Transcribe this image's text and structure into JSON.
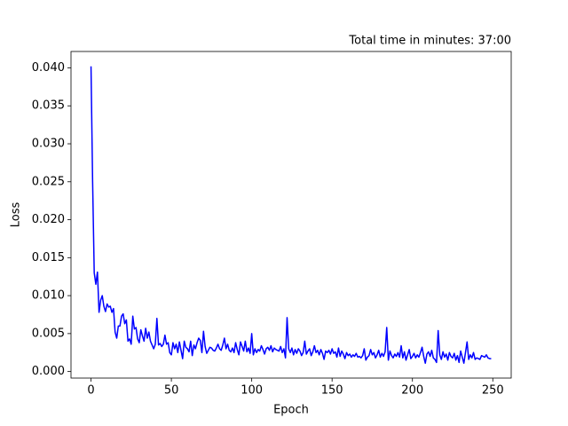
{
  "chart_data": {
    "type": "line",
    "title": "Total time in minutes: 37:00",
    "xlabel": "Epoch",
    "ylabel": "Loss",
    "x": [
      0,
      1,
      2,
      3,
      4,
      5,
      6,
      7,
      8,
      9,
      10,
      11,
      12,
      13,
      14,
      15,
      16,
      17,
      18,
      19,
      20,
      21,
      22,
      23,
      24,
      25,
      26,
      27,
      28,
      29,
      30,
      31,
      32,
      33,
      34,
      35,
      36,
      37,
      38,
      39,
      40,
      41,
      42,
      43,
      44,
      45,
      46,
      47,
      48,
      49,
      50,
      51,
      52,
      53,
      54,
      55,
      56,
      57,
      58,
      59,
      60,
      61,
      62,
      63,
      64,
      65,
      66,
      67,
      68,
      69,
      70,
      71,
      72,
      73,
      74,
      75,
      76,
      77,
      78,
      79,
      80,
      81,
      82,
      83,
      84,
      85,
      86,
      87,
      88,
      89,
      90,
      91,
      92,
      93,
      94,
      95,
      96,
      97,
      98,
      99,
      100,
      101,
      102,
      103,
      104,
      105,
      106,
      107,
      108,
      109,
      110,
      111,
      112,
      113,
      114,
      115,
      116,
      117,
      118,
      119,
      120,
      121,
      122,
      123,
      124,
      125,
      126,
      127,
      128,
      129,
      130,
      131,
      132,
      133,
      134,
      135,
      136,
      137,
      138,
      139,
      140,
      141,
      142,
      143,
      144,
      145,
      146,
      147,
      148,
      149,
      150,
      151,
      152,
      153,
      154,
      155,
      156,
      157,
      158,
      159,
      160,
      161,
      162,
      163,
      164,
      165,
      166,
      167,
      168,
      169,
      170,
      171,
      172,
      173,
      174,
      175,
      176,
      177,
      178,
      179,
      180,
      181,
      182,
      183,
      184,
      185,
      186,
      187,
      188,
      189,
      190,
      191,
      192,
      193,
      194,
      195,
      196,
      197,
      198,
      199,
      200,
      201,
      202,
      203,
      204,
      205,
      206,
      207,
      208,
      209,
      210,
      211,
      212,
      213,
      214,
      215,
      216,
      217,
      218,
      219,
      220,
      221,
      222,
      223,
      224,
      225,
      226,
      227,
      228,
      229,
      230,
      231,
      232,
      233,
      234,
      235,
      236,
      237,
      238,
      239,
      240,
      241,
      242,
      243,
      244,
      245,
      246,
      247,
      248,
      249
    ],
    "series": [
      {
        "name": "Loss",
        "color": "#0000ff",
        "values": [
          0.0402,
          0.025,
          0.013,
          0.0115,
          0.0131,
          0.0078,
          0.0094,
          0.01,
          0.0086,
          0.0079,
          0.0089,
          0.0085,
          0.0086,
          0.0078,
          0.0083,
          0.0052,
          0.0044,
          0.006,
          0.006,
          0.0073,
          0.0076,
          0.0063,
          0.0068,
          0.004,
          0.0043,
          0.0036,
          0.0073,
          0.0056,
          0.0058,
          0.0043,
          0.0038,
          0.0055,
          0.0047,
          0.004,
          0.0057,
          0.0044,
          0.0052,
          0.004,
          0.0035,
          0.003,
          0.0036,
          0.007,
          0.0035,
          0.0037,
          0.0033,
          0.0036,
          0.0048,
          0.0036,
          0.0038,
          0.0025,
          0.0022,
          0.0038,
          0.003,
          0.0036,
          0.0025,
          0.0039,
          0.0028,
          0.0017,
          0.004,
          0.0032,
          0.003,
          0.0026,
          0.004,
          0.0021,
          0.0035,
          0.003,
          0.0038,
          0.0044,
          0.0041,
          0.0025,
          0.0053,
          0.0033,
          0.0024,
          0.0028,
          0.0032,
          0.0031,
          0.0028,
          0.0027,
          0.0031,
          0.0036,
          0.003,
          0.0028,
          0.0035,
          0.0044,
          0.003,
          0.0036,
          0.0028,
          0.0026,
          0.0031,
          0.0025,
          0.0038,
          0.0029,
          0.0022,
          0.0039,
          0.0033,
          0.0027,
          0.004,
          0.0026,
          0.0031,
          0.0024,
          0.005,
          0.0022,
          0.003,
          0.0025,
          0.0029,
          0.0027,
          0.0034,
          0.0029,
          0.0023,
          0.003,
          0.0032,
          0.0028,
          0.0034,
          0.0026,
          0.0031,
          0.0029,
          0.0028,
          0.0027,
          0.0033,
          0.0025,
          0.003,
          0.0018,
          0.0071,
          0.003,
          0.0025,
          0.0031,
          0.0022,
          0.0029,
          0.0024,
          0.003,
          0.0027,
          0.0021,
          0.0025,
          0.004,
          0.0023,
          0.0027,
          0.003,
          0.0021,
          0.0026,
          0.0034,
          0.0025,
          0.0028,
          0.0022,
          0.0029,
          0.0024,
          0.0016,
          0.0027,
          0.0025,
          0.0028,
          0.0023,
          0.003,
          0.0024,
          0.0026,
          0.0019,
          0.0031,
          0.002,
          0.0027,
          0.0023,
          0.0017,
          0.0025,
          0.0021,
          0.0023,
          0.0019,
          0.0022,
          0.002,
          0.0024,
          0.0019,
          0.002,
          0.0018,
          0.0021,
          0.003,
          0.0015,
          0.0019,
          0.0021,
          0.0029,
          0.0022,
          0.0025,
          0.0018,
          0.0022,
          0.0028,
          0.0019,
          0.0024,
          0.002,
          0.0026,
          0.0058,
          0.0015,
          0.0027,
          0.0021,
          0.0018,
          0.0023,
          0.002,
          0.0025,
          0.0019,
          0.0034,
          0.0018,
          0.0026,
          0.0015,
          0.0022,
          0.0029,
          0.0017,
          0.002,
          0.0024,
          0.0018,
          0.0022,
          0.0019,
          0.0025,
          0.0032,
          0.002,
          0.0011,
          0.0023,
          0.0026,
          0.002,
          0.0028,
          0.0018,
          0.0016,
          0.0012,
          0.0054,
          0.0022,
          0.0016,
          0.0026,
          0.0019,
          0.0023,
          0.0015,
          0.0025,
          0.002,
          0.0018,
          0.0024,
          0.0015,
          0.0021,
          0.0012,
          0.0027,
          0.0019,
          0.0011,
          0.0025,
          0.0039,
          0.0016,
          0.0022,
          0.0018,
          0.0025,
          0.0016,
          0.0018,
          0.0017,
          0.0016,
          0.0021,
          0.002,
          0.0019,
          0.0022,
          0.0018,
          0.0017,
          0.0017
        ]
      }
    ],
    "xlim": [
      -12.45,
      261.45
    ],
    "xticks": [
      0,
      50,
      100,
      150,
      200,
      250
    ],
    "ylim": [
      -0.00086,
      0.04216
    ],
    "yticks": [
      {
        "value": 0,
        "label": "0.000"
      },
      {
        "value": 0.005,
        "label": "0.005"
      },
      {
        "value": 0.01,
        "label": "0.010"
      },
      {
        "value": 0.015,
        "label": "0.015"
      },
      {
        "value": 0.02,
        "label": "0.020"
      },
      {
        "value": 0.025,
        "label": "0.025"
      },
      {
        "value": 0.03,
        "label": "0.030"
      },
      {
        "value": 0.035,
        "label": "0.035"
      },
      {
        "value": 0.04,
        "label": "0.040"
      }
    ],
    "grid": false
  }
}
